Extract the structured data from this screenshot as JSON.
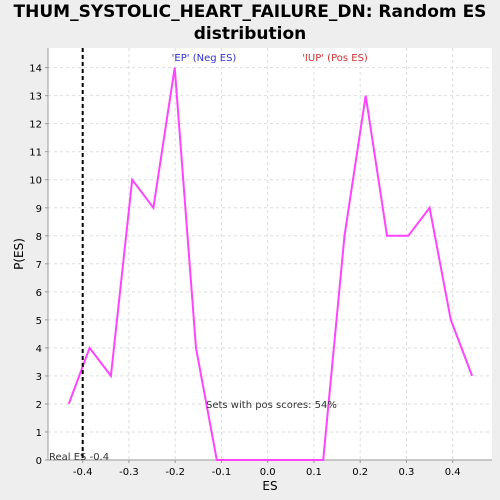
{
  "chart_data": {
    "type": "line",
    "title_line1": "THUM_SYSTOLIC_HEART_FAILURE_DN: Random ES",
    "title_line2": "distribution",
    "xlabel": "ES",
    "ylabel": "P(ES)",
    "xlim": [
      -0.475,
      0.485
    ],
    "ylim": [
      0,
      14.7
    ],
    "x_ticks": [
      -0.4,
      -0.3,
      -0.2,
      -0.1,
      0.0,
      0.1,
      0.2,
      0.3,
      0.4
    ],
    "x_tick_labels": [
      "-0.4",
      "-0.3",
      "-0.2",
      "-0.1",
      "0.0",
      "0.1",
      "0.2",
      "0.3",
      "0.4"
    ],
    "y_ticks": [
      0,
      1,
      2,
      3,
      4,
      5,
      6,
      7,
      8,
      9,
      10,
      11,
      12,
      13,
      14
    ],
    "y_tick_labels": [
      "0",
      "1",
      "2",
      "3",
      "4",
      "5",
      "6",
      "7",
      "8",
      "9",
      "10",
      "11",
      "12",
      "13",
      "14"
    ],
    "grid": true,
    "series": [
      {
        "color": "#ff44ff",
        "x": [
          -0.43,
          -0.385,
          -0.339,
          -0.293,
          -0.247,
          -0.201,
          -0.155,
          -0.11,
          -0.064,
          -0.018,
          0.028,
          0.074,
          0.12,
          0.166,
          0.212,
          0.258,
          0.304,
          0.35,
          0.396,
          0.442
        ],
        "y": [
          2,
          4,
          3,
          10,
          9,
          14,
          4,
          0,
          0,
          0,
          0,
          0,
          0,
          8,
          13,
          8,
          8,
          9,
          5,
          3
        ]
      }
    ],
    "real_es": {
      "x": -0.4,
      "label": "Real ES -0.4"
    },
    "annotations": {
      "neg": {
        "text": "'EP' (Neg ES)",
        "color": "#3333cc"
      },
      "pos": {
        "text": "'IUP' (Pos ES)",
        "color": "#cc3333"
      },
      "pos_scores": {
        "text": "Sets with pos scores: 54%",
        "color": "#333333"
      }
    }
  }
}
